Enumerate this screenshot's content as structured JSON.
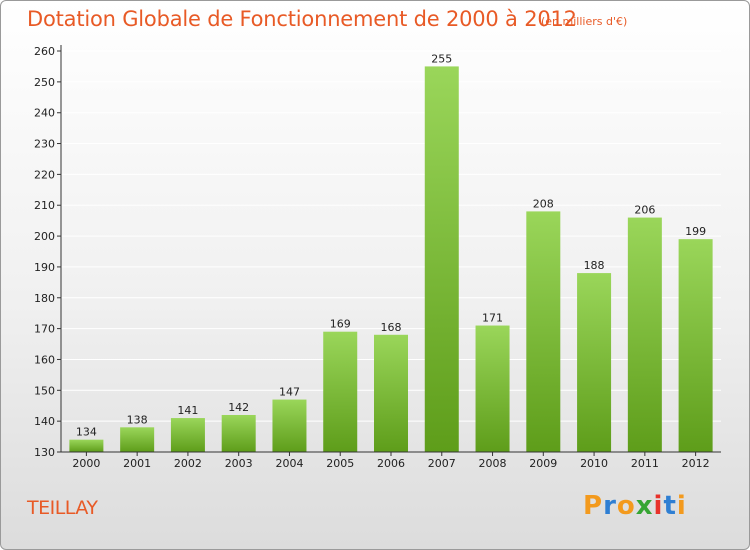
{
  "header": {
    "title": "Dotation Globale de Fonctionnement de 2000 à 2012",
    "subtitle": "(en milliers d'€)"
  },
  "footer": {
    "commune": "TEILLAY",
    "brand": "Proxiti",
    "brand_colors": [
      "#f39a1d",
      "#2f7fd3",
      "#f39a1d",
      "#36a533",
      "#e8322b",
      "#2f7fd3",
      "#f39a1d"
    ]
  },
  "colors": {
    "title": "#e85a26",
    "bar_top": "#9ad65a",
    "bar_bottom": "#5e9d1a",
    "grid": "#ffffff",
    "axis": "#333333"
  },
  "chart_data": {
    "type": "bar",
    "categories": [
      "2000",
      "2001",
      "2002",
      "2003",
      "2004",
      "2005",
      "2006",
      "2007",
      "2008",
      "2009",
      "2010",
      "2011",
      "2012"
    ],
    "values": [
      134,
      138,
      141,
      142,
      147,
      169,
      168,
      255,
      171,
      208,
      188,
      206,
      199
    ],
    "ylim": [
      130,
      260
    ],
    "yticks": [
      130,
      140,
      150,
      160,
      170,
      180,
      190,
      200,
      210,
      220,
      230,
      240,
      250,
      260
    ],
    "grid": true,
    "legend": "none",
    "title": "Dotation Globale de Fonctionnement de 2000 à 2012",
    "xlabel": "",
    "ylabel": ""
  }
}
